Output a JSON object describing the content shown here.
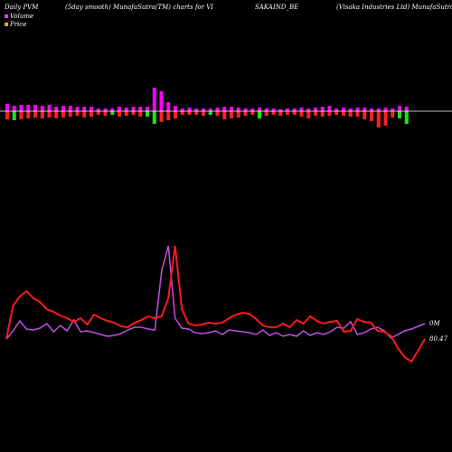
{
  "header": {
    "left": "Daily PVM",
    "center_left": "(5day smooth) MunafaSutra(TM) charts for VI",
    "center": "SAKAIND_BE",
    "right": "(Visaka Industries Ltd) MunafaSutra.com"
  },
  "legend": [
    {
      "label": "Volume",
      "color": "#e040e0"
    },
    {
      "label": "Price",
      "color": "#ffa040"
    }
  ],
  "colors": {
    "background": "#000000",
    "zero_line": "#ffffff",
    "bar_pos": "#ff00ff",
    "bar_neg_red": "#ff2020",
    "bar_neg_green": "#20e020",
    "price_line": "#ff1a1a",
    "volume_line": "#c050e0"
  },
  "chart_data": {
    "type": "line",
    "title": "",
    "xlabel": "",
    "ylabel": "",
    "grid": false,
    "legend_position": "top-left",
    "end_labels": {
      "volume": "0M",
      "price": "80.47"
    },
    "bars": [
      {
        "up": 8,
        "down": 9,
        "color": "red-magenta"
      },
      {
        "up": 6,
        "down": 10,
        "color": "green"
      },
      {
        "up": 7,
        "down": 9,
        "color": "red-magenta"
      },
      {
        "up": 7,
        "down": 8,
        "color": "red-magenta"
      },
      {
        "up": 7,
        "down": 7,
        "color": "red-magenta"
      },
      {
        "up": 6,
        "down": 8,
        "color": "red-magenta"
      },
      {
        "up": 7,
        "down": 7,
        "color": "red-magenta"
      },
      {
        "up": 5,
        "down": 8,
        "color": "red-magenta"
      },
      {
        "up": 6,
        "down": 7,
        "color": "red-magenta"
      },
      {
        "up": 6,
        "down": 6,
        "color": "red-magenta"
      },
      {
        "up": 5,
        "down": 5,
        "color": "red-magenta"
      },
      {
        "up": 5,
        "down": 7,
        "color": "red-magenta"
      },
      {
        "up": 5,
        "down": 6,
        "color": "red-magenta"
      },
      {
        "up": 3,
        "down": 4,
        "color": "red-magenta"
      },
      {
        "up": 3,
        "down": 5,
        "color": "red-magenta"
      },
      {
        "up": 3,
        "down": 4,
        "color": "green"
      },
      {
        "up": 5,
        "down": 6,
        "color": "red-magenta"
      },
      {
        "up": 4,
        "down": 5,
        "color": "red-magenta"
      },
      {
        "up": 5,
        "down": 4,
        "color": "red-magenta"
      },
      {
        "up": 5,
        "down": 6,
        "color": "red-magenta"
      },
      {
        "up": 5,
        "down": 6,
        "color": "green"
      },
      {
        "up": 26,
        "down": 14,
        "color": "green"
      },
      {
        "up": 22,
        "down": 12,
        "color": "red-magenta"
      },
      {
        "up": 10,
        "down": 10,
        "color": "red-magenta"
      },
      {
        "up": 6,
        "down": 8,
        "color": "red-magenta"
      },
      {
        "up": 3,
        "down": 4,
        "color": "red-magenta"
      },
      {
        "up": 4,
        "down": 4,
        "color": "red-magenta"
      },
      {
        "up": 3,
        "down": 4,
        "color": "red-magenta"
      },
      {
        "up": 3,
        "down": 5,
        "color": "red-magenta"
      },
      {
        "up": 3,
        "down": 4,
        "color": "green"
      },
      {
        "up": 4,
        "down": 5,
        "color": "red-magenta"
      },
      {
        "up": 5,
        "down": 9,
        "color": "red-magenta"
      },
      {
        "up": 5,
        "down": 8,
        "color": "red-magenta"
      },
      {
        "up": 4,
        "down": 7,
        "color": "red-magenta"
      },
      {
        "up": 3,
        "down": 5,
        "color": "red-magenta"
      },
      {
        "up": 3,
        "down": 4,
        "color": "red-magenta"
      },
      {
        "up": 4,
        "down": 8,
        "color": "green"
      },
      {
        "up": 3,
        "down": 5,
        "color": "red-magenta"
      },
      {
        "up": 3,
        "down": 4,
        "color": "red-magenta"
      },
      {
        "up": 2,
        "down": 5,
        "color": "red-magenta"
      },
      {
        "up": 3,
        "down": 4,
        "color": "red-magenta"
      },
      {
        "up": 3,
        "down": 4,
        "color": "red-magenta"
      },
      {
        "up": 4,
        "down": 6,
        "color": "red-magenta"
      },
      {
        "up": 3,
        "down": 8,
        "color": "red-magenta"
      },
      {
        "up": 4,
        "down": 5,
        "color": "red-magenta"
      },
      {
        "up": 5,
        "down": 6,
        "color": "red-magenta"
      },
      {
        "up": 6,
        "down": 5,
        "color": "red-magenta"
      },
      {
        "up": 3,
        "down": 4,
        "color": "red-magenta"
      },
      {
        "up": 4,
        "down": 5,
        "color": "red-magenta"
      },
      {
        "up": 3,
        "down": 6,
        "color": "red-magenta"
      },
      {
        "up": 4,
        "down": 6,
        "color": "red-magenta"
      },
      {
        "up": 4,
        "down": 9,
        "color": "red-magenta"
      },
      {
        "up": 3,
        "down": 11,
        "color": "red-magenta"
      },
      {
        "up": 3,
        "down": 18,
        "color": "red-magenta"
      },
      {
        "up": 4,
        "down": 16,
        "color": "red-magenta"
      },
      {
        "up": 3,
        "down": 7,
        "color": "red-magenta"
      },
      {
        "up": 6,
        "down": 8,
        "color": "green"
      },
      {
        "up": 5,
        "down": 14,
        "color": "green"
      }
    ],
    "price": [
      375,
      338,
      328,
      322,
      330,
      334,
      342,
      345,
      349,
      352,
      356,
      352,
      359,
      348,
      352,
      355,
      357,
      361,
      362,
      357,
      354,
      350,
      352,
      350,
      330,
      272,
      342,
      358,
      360,
      359,
      357,
      358,
      357,
      352,
      348,
      346,
      347,
      353,
      360,
      362,
      362,
      358,
      362,
      354,
      358,
      350,
      355,
      358,
      356,
      355,
      367,
      366,
      353,
      356,
      357,
      366,
      367,
      372,
      385,
      395,
      400,
      388,
      375
    ],
    "volume": [
      375,
      366,
      355,
      364,
      365,
      363,
      358,
      367,
      360,
      366,
      354,
      367,
      366,
      368,
      370,
      372,
      371,
      369,
      365,
      362,
      362,
      364,
      365,
      300,
      272,
      352,
      363,
      364,
      368,
      369,
      368,
      366,
      370,
      365,
      366,
      367,
      368,
      370,
      365,
      371,
      368,
      372,
      370,
      372,
      366,
      371,
      368,
      370,
      367,
      362,
      363,
      356,
      370,
      368,
      364,
      362,
      366,
      374,
      370,
      366,
      364,
      361,
      358
    ]
  }
}
